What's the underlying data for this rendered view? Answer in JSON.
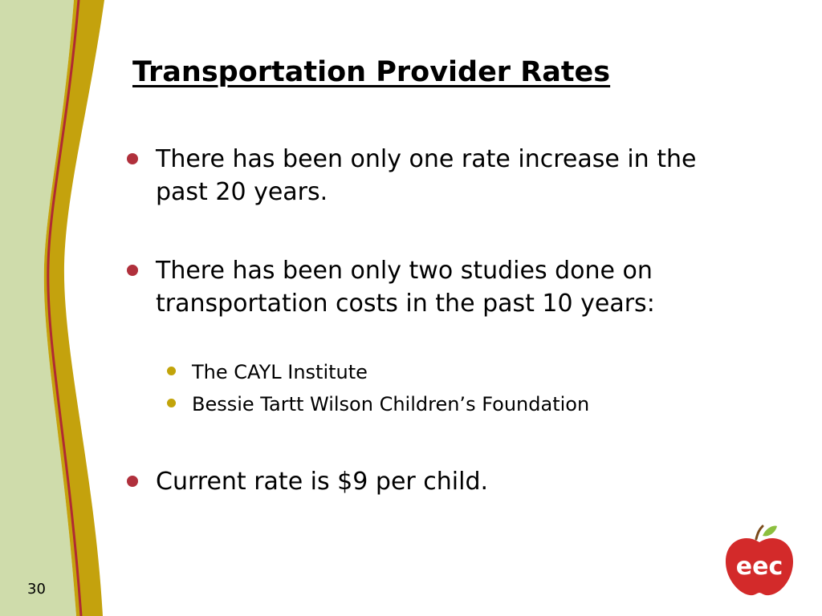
{
  "slide": {
    "title": "Transportation Provider Rates",
    "bullets": [
      {
        "text": "There has been only one rate increase in the past 20 years."
      },
      {
        "text": "There has been only two studies done on transportation costs in the past 10 years:"
      },
      {
        "text": "Current rate is $9 per child."
      }
    ],
    "sub_bullets": [
      {
        "text": "The CAYL Institute"
      },
      {
        "text": "Bessie Tartt Wilson Children’s Foundation"
      }
    ],
    "page_number": "30"
  },
  "logo": {
    "text": "eec",
    "icon": "apple-icon"
  },
  "colors": {
    "sidebar_green": "#cfdcab",
    "band_gold": "#c4a20d",
    "line_red": "#b02a33",
    "bullet_red": "#b0303c",
    "bullet_gold": "#c2a40a",
    "logo_red": "#d32a2a",
    "leaf_green": "#8cbf3f"
  }
}
